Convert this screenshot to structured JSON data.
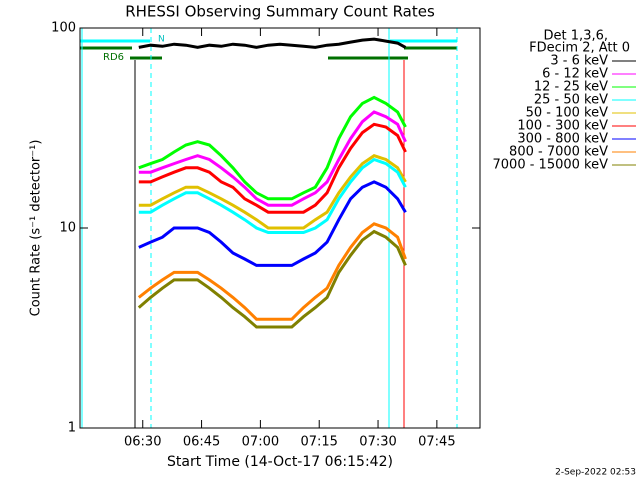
{
  "chart_data": {
    "type": "line",
    "title": "RHESSI Observing Summary Count Rates",
    "xlabel": "Start Time (14-Oct-17 06:15:42)",
    "ylabel": "Count Rate (s⁻¹ detector⁻¹)",
    "legend_header": [
      "Det 1,3,6,",
      "FDecim 2, Att 0"
    ],
    "legend": "right",
    "footer": "2-Sep-2022 02:53",
    "annotations": [
      "RD6",
      "N"
    ],
    "log_y": true,
    "xlim": [
      "06:14",
      "07:56"
    ],
    "xticks": [
      "06:30",
      "06:45",
      "07:00",
      "07:15",
      "07:30",
      "07:45"
    ],
    "ylim": [
      1,
      100
    ],
    "yticks": [
      1,
      10,
      100
    ],
    "x": [
      "06:29",
      "06:32",
      "06:35",
      "06:38",
      "06:41",
      "06:44",
      "06:47",
      "06:50",
      "06:53",
      "06:56",
      "06:59",
      "07:02",
      "07:05",
      "07:08",
      "07:11",
      "07:14",
      "07:17",
      "07:20",
      "07:23",
      "07:26",
      "07:29",
      "07:32",
      "07:35",
      "07:37"
    ],
    "series": [
      {
        "name": "3 - 6 keV",
        "color": "#000000",
        "values": [
          80,
          82,
          81,
          83,
          82,
          80,
          82,
          81,
          83,
          82,
          80,
          82,
          83,
          82,
          81,
          80,
          82,
          83,
          85,
          87,
          88,
          86,
          84,
          80
        ]
      },
      {
        "name": "6 - 12 keV",
        "color": "#ff00ff",
        "values": [
          19,
          19,
          20,
          21,
          22,
          23,
          22,
          20,
          18,
          16,
          14,
          13,
          13,
          13,
          14,
          15,
          17,
          22,
          28,
          34,
          38,
          36,
          33,
          27
        ]
      },
      {
        "name": "12 - 25 keV",
        "color": "#00ff00",
        "values": [
          20,
          21,
          22,
          24,
          26,
          27,
          26,
          23,
          20,
          17,
          15,
          14,
          14,
          14,
          15,
          16,
          20,
          28,
          36,
          42,
          45,
          42,
          38,
          32
        ]
      },
      {
        "name": "25 - 50 keV",
        "color": "#00ffff",
        "values": [
          12,
          12,
          13,
          14,
          15,
          15,
          14,
          13,
          12,
          11,
          10,
          9.5,
          9.5,
          9.5,
          9.5,
          10,
          11,
          14,
          17,
          20,
          22,
          21,
          19,
          16
        ]
      },
      {
        "name": "50 - 100 keV",
        "color": "#e0c000",
        "values": [
          13,
          13,
          14,
          15,
          16,
          16,
          15,
          14,
          13,
          12,
          11,
          10,
          10,
          10,
          10,
          11,
          12,
          15,
          18,
          21,
          23,
          22,
          20,
          17
        ]
      },
      {
        "name": "100 - 300 keV",
        "color": "#ff0000",
        "values": [
          17,
          17,
          18,
          19,
          20,
          20,
          19,
          17,
          16,
          14,
          13,
          12,
          12,
          12,
          12,
          13,
          15,
          20,
          25,
          30,
          33,
          32,
          29,
          24
        ]
      },
      {
        "name": "300 - 800 keV",
        "color": "#0000ff",
        "values": [
          8,
          8.5,
          9,
          10,
          10,
          10,
          9.5,
          8.5,
          7.5,
          7,
          6.5,
          6.5,
          6.5,
          6.5,
          7,
          7.5,
          8.5,
          11,
          14,
          16,
          17,
          16,
          14,
          12
        ]
      },
      {
        "name": "800 - 7000 keV",
        "color": "#ff8000",
        "values": [
          4.5,
          5,
          5.5,
          6,
          6,
          6,
          5.5,
          5,
          4.5,
          4,
          3.5,
          3.5,
          3.5,
          3.5,
          4,
          4.5,
          5,
          6.5,
          8,
          9.5,
          10.5,
          10,
          9,
          7
        ]
      },
      {
        "name": "7000 - 15000 keV",
        "color": "#808000",
        "values": [
          4,
          4.5,
          5,
          5.5,
          5.5,
          5.5,
          5,
          4.5,
          4,
          3.6,
          3.2,
          3.2,
          3.2,
          3.2,
          3.6,
          4,
          4.5,
          6,
          7.3,
          8.7,
          9.6,
          9,
          8,
          6.5
        ]
      }
    ]
  }
}
